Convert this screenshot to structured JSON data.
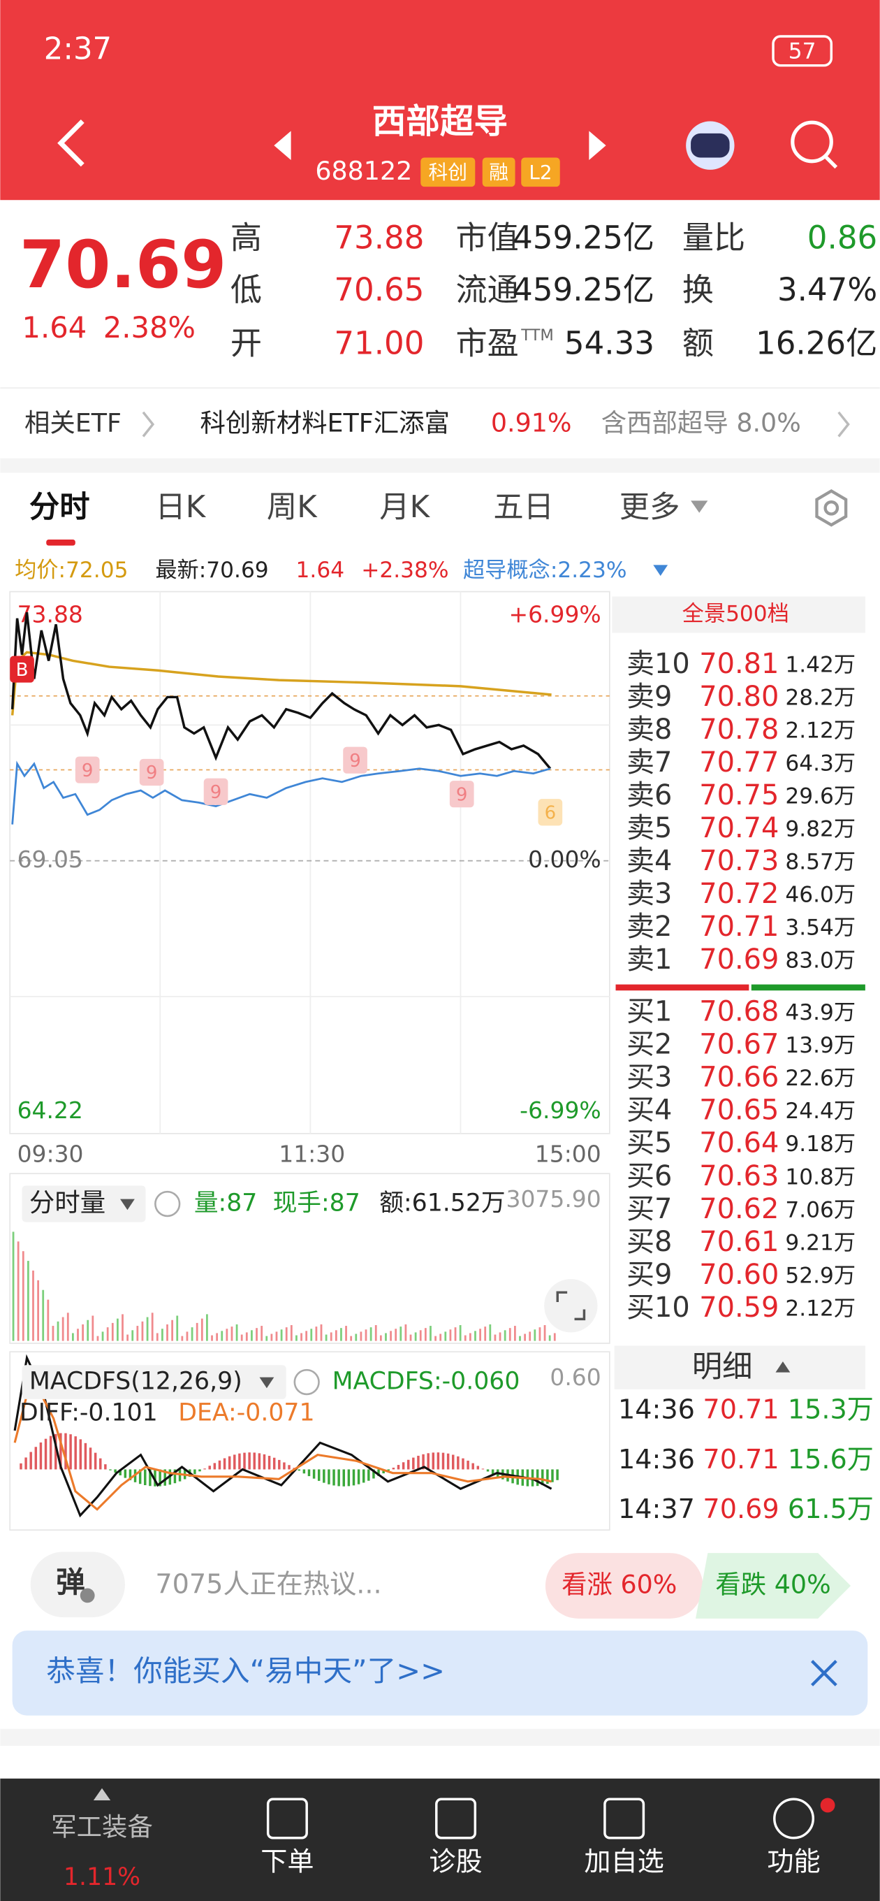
{
  "status": {
    "time": "2:37",
    "battery": "57"
  },
  "header": {
    "title": "西部超导",
    "code": "688122",
    "tags": [
      "科创",
      "融",
      "L2"
    ]
  },
  "quote": {
    "price": "70.69",
    "change": "1.64",
    "pct": "2.38%",
    "stats": [
      [
        {
          "label": "高",
          "value": "73.88"
        },
        {
          "label": "市值",
          "value": "459.25亿"
        },
        {
          "label": "量比",
          "value": "0.86"
        }
      ],
      [
        {
          "label": "低",
          "value": "70.65"
        },
        {
          "label": "流通",
          "value": "459.25亿"
        },
        {
          "label": "换",
          "value": "3.47%"
        }
      ],
      [
        {
          "label": "开",
          "value": "71.00"
        },
        {
          "label": "市盈",
          "sup": "TTM",
          "value": "54.33"
        },
        {
          "label": "额",
          "value": "16.26亿"
        }
      ]
    ]
  },
  "etf": {
    "label": "相关ETF",
    "name": "科创新材料ETF汇添富",
    "pct": "0.91%",
    "holding": "含西部超导 8.0%"
  },
  "tabs": [
    "分时",
    "日K",
    "周K",
    "月K",
    "五日",
    "更多"
  ],
  "info": {
    "avg": "均价:72.05",
    "latest": "最新:70.69",
    "change": "1.64",
    "pct": "+2.38%",
    "concept": "超导概念:2.23%"
  },
  "chart": {
    "high": "73.88",
    "high_pct": "+6.99%",
    "base": "69.05",
    "base_pct": "0.00%",
    "low": "64.22",
    "low_pct": "-6.99%",
    "times": [
      "09:30",
      "11:30",
      "15:00"
    ],
    "markers": [
      "B",
      "9",
      "9",
      "9",
      "9",
      "9",
      "6"
    ]
  },
  "orderbook": {
    "title": "全景500档",
    "asks": [
      [
        "卖10",
        "70.81",
        "1.42万"
      ],
      [
        "卖9",
        "70.80",
        "28.2万"
      ],
      [
        "卖8",
        "70.78",
        "2.12万"
      ],
      [
        "卖7",
        "70.77",
        "64.3万"
      ],
      [
        "卖6",
        "70.75",
        "29.6万"
      ],
      [
        "卖5",
        "70.74",
        "9.82万"
      ],
      [
        "卖4",
        "70.73",
        "8.57万"
      ],
      [
        "卖3",
        "70.72",
        "46.0万"
      ],
      [
        "卖2",
        "70.71",
        "3.54万"
      ],
      [
        "卖1",
        "70.69",
        "83.0万"
      ]
    ],
    "bids": [
      [
        "买1",
        "70.68",
        "43.9万"
      ],
      [
        "买2",
        "70.67",
        "13.9万"
      ],
      [
        "买3",
        "70.66",
        "22.6万"
      ],
      [
        "买4",
        "70.65",
        "24.4万"
      ],
      [
        "买5",
        "70.64",
        "9.18万"
      ],
      [
        "买6",
        "70.63",
        "10.8万"
      ],
      [
        "买7",
        "70.62",
        "7.06万"
      ],
      [
        "买8",
        "70.61",
        "9.21万"
      ],
      [
        "买9",
        "70.60",
        "52.9万"
      ],
      [
        "买10",
        "70.59",
        "2.12万"
      ]
    ]
  },
  "volume": {
    "title": "分时量",
    "vol": "量:87",
    "hand": "现手:87",
    "amount": "额:61.52万",
    "max": "3075.90"
  },
  "macd": {
    "title": "MACDFS(12,26,9)",
    "macd": "MACDFS:-0.060",
    "max": "0.60",
    "diff": "DIFF:-0.101",
    "dea": "DEA:-0.071"
  },
  "details": {
    "title": "明细",
    "rows": [
      [
        "14:36",
        "70.71",
        "15.3万"
      ],
      [
        "14:36",
        "70.71",
        "15.6万"
      ],
      [
        "14:37",
        "70.69",
        "61.5万"
      ]
    ]
  },
  "comment": {
    "button": "弹",
    "placeholder": "7075人正在热议...",
    "up": "看涨 60%",
    "down": "看跌 40%"
  },
  "banner": {
    "text": "恭喜！你能买入“易中天”了>>"
  },
  "nav": {
    "sector": "军工装备",
    "sector_pct": "1.11%",
    "items": [
      "下单",
      "诊股",
      "加自选",
      "功能"
    ]
  }
}
